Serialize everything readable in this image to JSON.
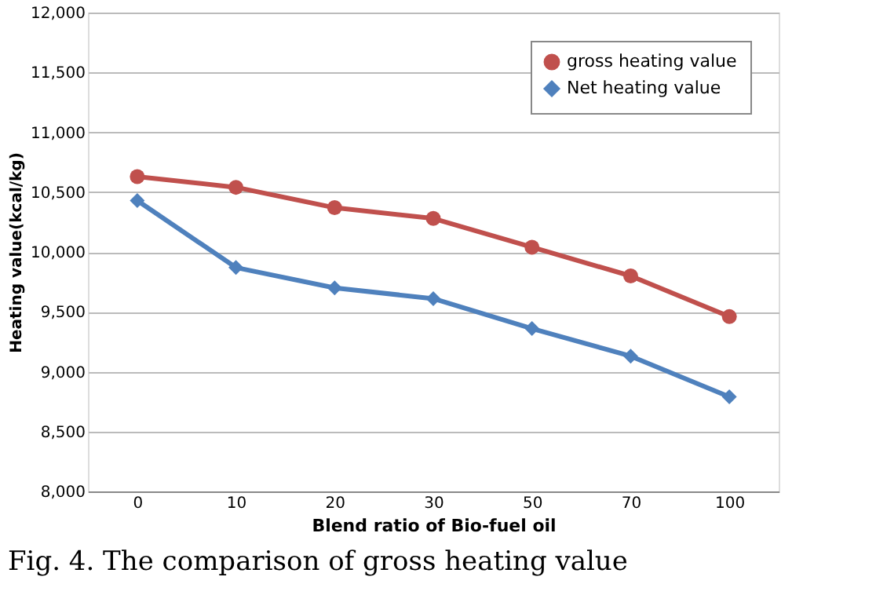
{
  "chart_data": {
    "type": "line",
    "xlabel": "Blend ratio of Bio-fuel oil",
    "ylabel": "Heating value(kcal/kg)",
    "categories": [
      "0",
      "10",
      "20",
      "30",
      "50",
      "70",
      "100"
    ],
    "series": [
      {
        "name": "gross heating value",
        "color": "#c0504d",
        "marker": "circle",
        "values": [
          10630,
          10540,
          10370,
          10280,
          10040,
          9800,
          9460
        ]
      },
      {
        "name": "Net heating value",
        "color": "#4f81bd",
        "marker": "diamond",
        "values": [
          10430,
          9870,
          9700,
          9610,
          9360,
          9130,
          8790
        ]
      }
    ],
    "ylim": [
      8000,
      12000
    ],
    "yticks": [
      {
        "value": 8000,
        "label": "8,000"
      },
      {
        "value": 8500,
        "label": "8,500"
      },
      {
        "value": 9000,
        "label": "9,000"
      },
      {
        "value": 9500,
        "label": "9,500"
      },
      {
        "value": 10000,
        "label": "10,000"
      },
      {
        "value": 10500,
        "label": "10,500"
      },
      {
        "value": 11000,
        "label": "11,000"
      },
      {
        "value": 11500,
        "label": "11,500"
      },
      {
        "value": 12000,
        "label": "12,000"
      }
    ],
    "grid": "y",
    "legend": "top right",
    "line_style": "solid",
    "annotations": [
      "Fig. 4. The comparison of gross heating value"
    ]
  }
}
